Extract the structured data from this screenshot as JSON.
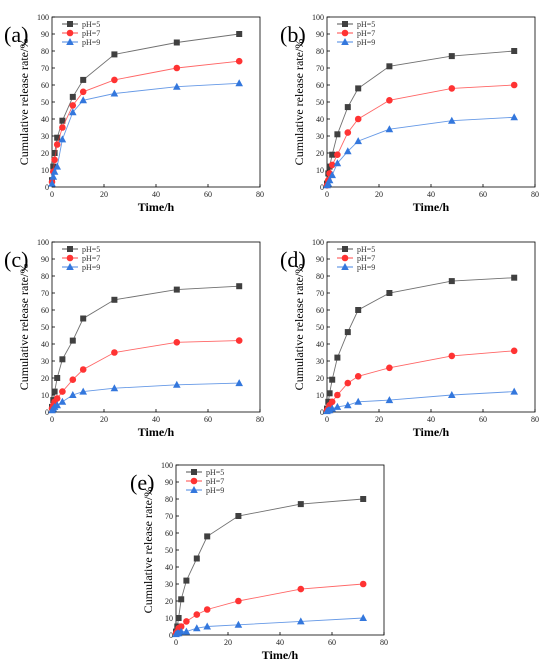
{
  "chart_data": [
    {
      "type": "line",
      "panel_label": "(a)",
      "xlabel": "Time/h",
      "ylabel": "Cumulative release rate/%",
      "xlim": [
        0,
        80
      ],
      "ylim": [
        0,
        100
      ],
      "xticks": [
        "0",
        "20",
        "40",
        "60",
        "80"
      ],
      "yticks": [
        "0",
        "10",
        "20",
        "30",
        "40",
        "50",
        "60",
        "70",
        "80",
        "90",
        "100"
      ],
      "legend": "top-left",
      "x": [
        0,
        0.5,
        1,
        2,
        4,
        8,
        12,
        24,
        48,
        72
      ],
      "series": [
        {
          "name": "pH=5",
          "color": "#404040",
          "marker": "square",
          "values": [
            4,
            12,
            20,
            29,
            39,
            53,
            63,
            78,
            85,
            90
          ]
        },
        {
          "name": "pH=7",
          "color": "#ff3333",
          "marker": "circle",
          "values": [
            3,
            9,
            16,
            25,
            35,
            48,
            56,
            63,
            70,
            74
          ]
        },
        {
          "name": "pH=9",
          "color": "#3377dd",
          "marker": "triangle",
          "values": [
            2,
            6,
            9,
            12,
            28,
            44,
            51,
            55,
            59,
            61
          ]
        }
      ]
    },
    {
      "type": "line",
      "panel_label": "(b)",
      "xlabel": "Time/h",
      "ylabel": "Cumulative release rate/%",
      "xlim": [
        0,
        80
      ],
      "ylim": [
        0,
        100
      ],
      "xticks": [
        "0",
        "20",
        "40",
        "60",
        "80"
      ],
      "yticks": [
        "0",
        "10",
        "20",
        "30",
        "40",
        "50",
        "60",
        "70",
        "80",
        "90",
        "100"
      ],
      "legend": "top-left",
      "x": [
        0,
        0.5,
        1,
        2,
        4,
        8,
        12,
        24,
        48,
        72
      ],
      "series": [
        {
          "name": "pH=5",
          "color": "#404040",
          "marker": "square",
          "values": [
            2,
            8,
            12,
            19,
            31,
            47,
            58,
            71,
            77,
            80
          ]
        },
        {
          "name": "pH=7",
          "color": "#ff3333",
          "marker": "circle",
          "values": [
            1,
            4,
            8,
            13,
            19,
            32,
            40,
            51,
            58,
            60
          ]
        },
        {
          "name": "pH=9",
          "color": "#3377dd",
          "marker": "triangle",
          "values": [
            1,
            2,
            4,
            7,
            14,
            21,
            27,
            34,
            39,
            41
          ]
        }
      ]
    },
    {
      "type": "line",
      "panel_label": "(c)",
      "xlabel": "Time/h",
      "ylabel": "Cumulative release rate/%",
      "xlim": [
        0,
        80
      ],
      "ylim": [
        0,
        100
      ],
      "xticks": [
        "0",
        "20",
        "40",
        "60",
        "80"
      ],
      "yticks": [
        "0",
        "10",
        "20",
        "30",
        "40",
        "50",
        "60",
        "70",
        "80",
        "90",
        "100"
      ],
      "legend": "top-left",
      "x": [
        0,
        0.5,
        1,
        2,
        4,
        8,
        12,
        24,
        48,
        72
      ],
      "series": [
        {
          "name": "pH=5",
          "color": "#404040",
          "marker": "square",
          "values": [
            3,
            7,
            12,
            20,
            31,
            42,
            55,
            66,
            72,
            74
          ]
        },
        {
          "name": "pH=7",
          "color": "#ff3333",
          "marker": "circle",
          "values": [
            2,
            4,
            6,
            8,
            12,
            19,
            25,
            35,
            41,
            42
          ]
        },
        {
          "name": "pH=9",
          "color": "#3377dd",
          "marker": "triangle",
          "values": [
            1,
            2,
            3,
            4,
            6,
            10,
            12,
            14,
            16,
            17
          ]
        }
      ]
    },
    {
      "type": "line",
      "panel_label": "(d)",
      "xlabel": "Time/h",
      "ylabel": "Cumulative release rate/%",
      "xlim": [
        0,
        80
      ],
      "ylim": [
        0,
        100
      ],
      "xticks": [
        "0",
        "20",
        "40",
        "60",
        "80"
      ],
      "yticks": [
        "0",
        "10",
        "20",
        "30",
        "40",
        "50",
        "60",
        "70",
        "80",
        "90",
        "100"
      ],
      "legend": "top-left",
      "x": [
        0,
        0.5,
        1,
        2,
        4,
        8,
        12,
        24,
        48,
        72
      ],
      "series": [
        {
          "name": "pH=5",
          "color": "#404040",
          "marker": "square",
          "values": [
            2,
            6,
            11,
            19,
            32,
            47,
            60,
            70,
            77,
            79
          ]
        },
        {
          "name": "pH=7",
          "color": "#ff3333",
          "marker": "circle",
          "values": [
            1,
            2,
            4,
            6,
            10,
            17,
            21,
            26,
            33,
            36
          ]
        },
        {
          "name": "pH=9",
          "color": "#3377dd",
          "marker": "triangle",
          "values": [
            0.5,
            1,
            1,
            2,
            3,
            4,
            6,
            7,
            10,
            12
          ]
        }
      ]
    },
    {
      "type": "line",
      "panel_label": "(e)",
      "xlabel": "Time/h",
      "ylabel": "Cumulative release rate/%",
      "xlim": [
        0,
        80
      ],
      "ylim": [
        0,
        100
      ],
      "xticks": [
        "0",
        "20",
        "40",
        "60",
        "80"
      ],
      "yticks": [
        "0",
        "10",
        "20",
        "30",
        "40",
        "50",
        "60",
        "70",
        "80",
        "90",
        "100"
      ],
      "legend": "top-left",
      "x": [
        0,
        0.5,
        1,
        2,
        4,
        8,
        12,
        24,
        48,
        72
      ],
      "series": [
        {
          "name": "pH=5",
          "color": "#404040",
          "marker": "square",
          "values": [
            2,
            5,
            10,
            21,
            32,
            45,
            58,
            70,
            77,
            80
          ]
        },
        {
          "name": "pH=7",
          "color": "#ff3333",
          "marker": "circle",
          "values": [
            1,
            2,
            4,
            5,
            8,
            12,
            15,
            20,
            27,
            30
          ]
        },
        {
          "name": "pH=9",
          "color": "#3377dd",
          "marker": "triangle",
          "values": [
            0.5,
            1,
            1,
            2,
            2,
            4,
            5,
            6,
            8,
            10
          ]
        }
      ]
    }
  ]
}
